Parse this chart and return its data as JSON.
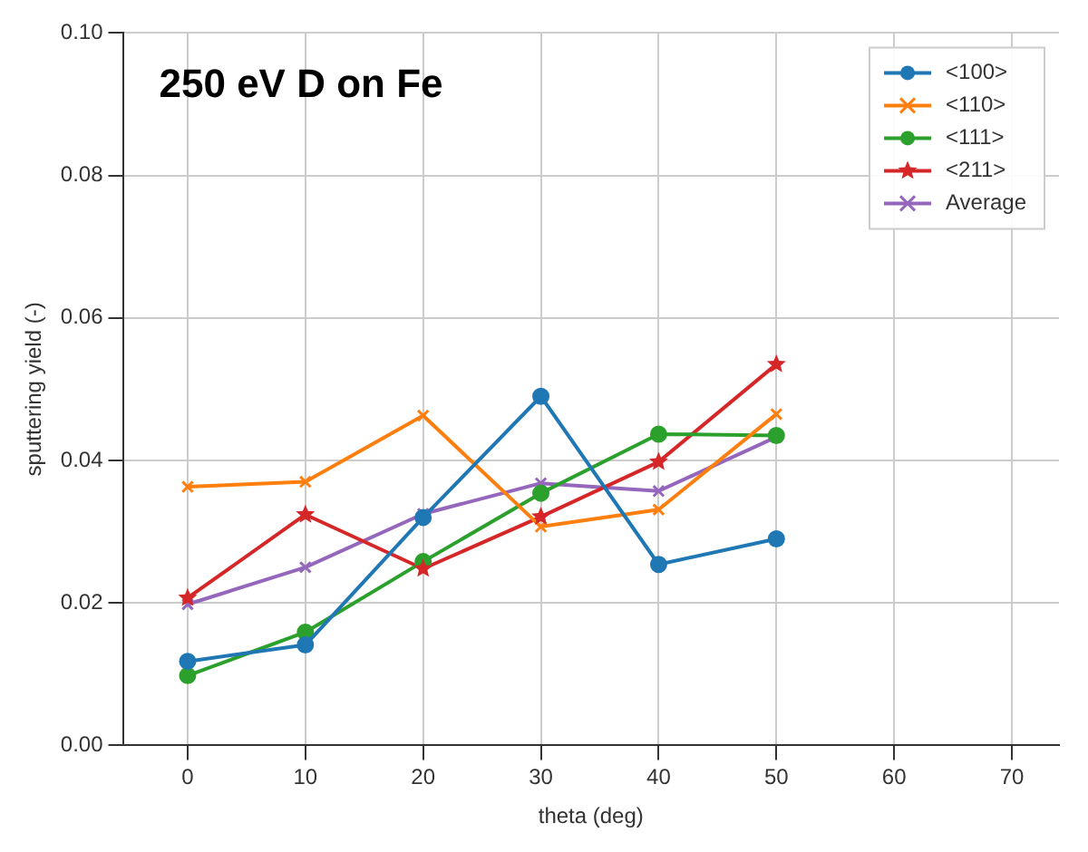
{
  "chart_data": {
    "type": "line",
    "title": "250 eV D on Fe",
    "xlabel": "theta (deg)",
    "ylabel": "sputtering yield (-)",
    "x": [
      0,
      10,
      20,
      30,
      40,
      50
    ],
    "series": [
      {
        "name": "<100>",
        "color": "#1f77b4",
        "marker": "circle",
        "values": [
          0.0118,
          0.0141,
          0.032,
          0.049,
          0.0254,
          0.029
        ]
      },
      {
        "name": "<110>",
        "color": "#ff7f0e",
        "marker": "cross",
        "values": [
          0.0363,
          0.037,
          0.0463,
          0.0307,
          0.0331,
          0.0465
        ]
      },
      {
        "name": "<111>",
        "color": "#2ca02c",
        "marker": "circle",
        "values": [
          0.0098,
          0.0159,
          0.0258,
          0.0354,
          0.0437,
          0.0435
        ]
      },
      {
        "name": "<211>",
        "color": "#d62728",
        "marker": "star",
        "values": [
          0.0207,
          0.0324,
          0.0248,
          0.0321,
          0.0398,
          0.0535
        ]
      },
      {
        "name": "Average",
        "color": "#9467bd",
        "marker": "cross",
        "values": [
          0.0198,
          0.025,
          0.0325,
          0.0368,
          0.0357,
          0.0433
        ]
      }
    ],
    "xlim": [
      -5.5,
      74
    ],
    "xticks": [
      0,
      10,
      20,
      30,
      40,
      50,
      60,
      70
    ],
    "ylim": [
      0,
      0.1
    ],
    "yticks": [
      {
        "value": 0,
        "label": "0.00"
      },
      {
        "value": 0.02,
        "label": "0.02"
      },
      {
        "value": 0.04,
        "label": "0.04"
      },
      {
        "value": 0.06,
        "label": "0.06"
      },
      {
        "value": 0.08,
        "label": "0.08"
      },
      {
        "value": 0.1,
        "label": "0.10"
      }
    ],
    "grid": true,
    "legend": "top right"
  }
}
